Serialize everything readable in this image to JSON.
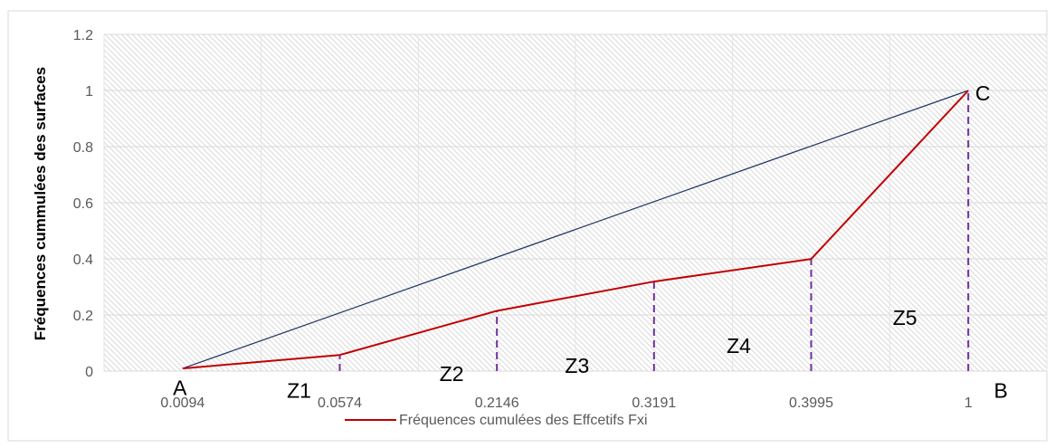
{
  "chart_data": {
    "type": "line",
    "title": "",
    "xlabel": "",
    "ylabel": "Fréquences cummulées des surfaces",
    "categories": [
      "0.0094",
      "0.0574",
      "0.2146",
      "0.3191",
      "0.3995",
      "1"
    ],
    "ylim": [
      0,
      1.2
    ],
    "yticks": [
      "0",
      "0.2",
      "0.4",
      "0.6",
      "0.8",
      "1",
      "1.2"
    ],
    "series": [
      {
        "name": "Fréquences cumulées des Effcetifs Fxi",
        "values": [
          0.0094,
          0.0574,
          0.2146,
          0.3191,
          0.3995,
          1
        ],
        "color": "#C00000"
      },
      {
        "name": "",
        "values": [
          0.0094,
          0.2075,
          0.4057,
          0.6038,
          0.8019,
          1
        ],
        "color": "#1F3864"
      }
    ],
    "dividers": {
      "at": [
        "0.0574",
        "0.2146",
        "0.3191",
        "0.3995",
        "1"
      ],
      "color": "#7030A0",
      "style": "dashed"
    },
    "annotations": [
      {
        "text": "A",
        "near": "0.0094",
        "y": -0.06
      },
      {
        "text": "B",
        "near": "1",
        "y": -0.07
      },
      {
        "text": "C",
        "near": "1",
        "y": 0.99
      },
      {
        "text": "Z1",
        "near": "0.0574",
        "y": -0.07
      },
      {
        "text": "Z2",
        "near": "0.2146",
        "y": -0.01
      },
      {
        "text": "Z3",
        "near": "0.3191",
        "y": 0.02
      },
      {
        "text": "Z4",
        "near": "0.3995",
        "y": 0.09
      },
      {
        "text": "Z5",
        "near": "1",
        "y": 0.19
      }
    ],
    "grid": true,
    "background": "hatched",
    "legend": "bottom"
  }
}
